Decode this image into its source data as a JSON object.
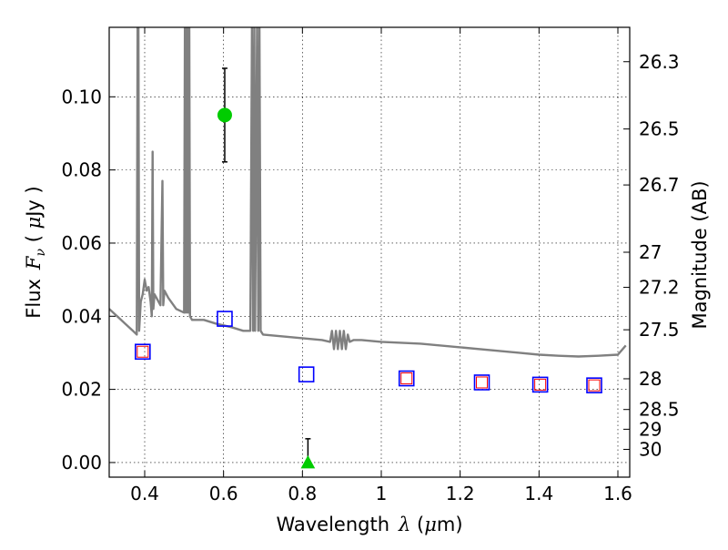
{
  "chart_data": {
    "type": "scatter",
    "xlabel": "Wavelength",
    "ylabel": "Flux",
    "y2label": "Magnitude (AB)",
    "xlim": [
      0.31,
      1.63
    ],
    "ylim": [
      -0.004,
      0.119
    ],
    "grid": true,
    "x_ticks": [
      0.4,
      0.6,
      0.8,
      1.0,
      1.2,
      1.4,
      1.6
    ],
    "x_tick_labels": [
      "0.4",
      "0.6",
      "0.8",
      "1",
      "1.2",
      "1.4",
      "1.6"
    ],
    "y_ticks": [
      0.0,
      0.02,
      0.04,
      0.06,
      0.08,
      0.1
    ],
    "y_tick_labels": [
      "0.00",
      "0.02",
      "0.04",
      "0.06",
      "0.08",
      "0.10"
    ],
    "y2_ticks": [
      {
        "label": "26.3",
        "flux": 0.1096
      },
      {
        "label": "26.5",
        "flux": 0.0912
      },
      {
        "label": "26.7",
        "flux": 0.0759
      },
      {
        "label": "27",
        "flux": 0.0575
      },
      {
        "label": "27.2",
        "flux": 0.0479
      },
      {
        "label": "27.5",
        "flux": 0.0363
      },
      {
        "label": "28",
        "flux": 0.0229
      },
      {
        "label": "28.5",
        "flux": 0.0145
      },
      {
        "label": "29",
        "flux": 0.0091
      },
      {
        "label": "30",
        "flux": 0.0036
      }
    ],
    "series": [
      {
        "style": "line",
        "color": "#808080",
        "x": [
          0.31,
          0.33,
          0.35,
          0.37,
          0.38,
          0.382,
          0.384,
          0.386,
          0.39,
          0.395,
          0.4,
          0.405,
          0.41,
          0.415,
          0.418,
          0.42,
          0.422,
          0.425,
          0.43,
          0.44,
          0.445,
          0.447,
          0.45,
          0.46,
          0.48,
          0.5,
          0.502,
          0.503,
          0.505,
          0.507,
          0.509,
          0.511,
          0.513,
          0.515,
          0.52,
          0.55,
          0.58,
          0.6,
          0.62,
          0.65,
          0.668,
          0.672,
          0.675,
          0.678,
          0.68,
          0.685,
          0.688,
          0.691,
          0.694,
          0.7,
          0.75,
          0.8,
          0.85,
          0.87,
          0.875,
          0.88,
          0.885,
          0.89,
          0.895,
          0.9,
          0.905,
          0.91,
          0.915,
          0.92,
          0.93,
          0.94,
          0.95,
          1.0,
          1.1,
          1.2,
          1.3,
          1.35,
          1.4,
          1.45,
          1.5,
          1.55,
          1.6,
          1.62
        ],
        "y": [
          0.042,
          0.04,
          0.038,
          0.036,
          0.035,
          0.12,
          0.12,
          0.036,
          0.044,
          0.046,
          0.05,
          0.047,
          0.048,
          0.044,
          0.04,
          0.085,
          0.042,
          0.046,
          0.045,
          0.043,
          0.077,
          0.043,
          0.047,
          0.045,
          0.042,
          0.041,
          0.12,
          0.041,
          0.12,
          0.041,
          0.12,
          0.041,
          0.12,
          0.04,
          0.039,
          0.039,
          0.038,
          0.0375,
          0.037,
          0.036,
          0.036,
          0.12,
          0.036,
          0.12,
          0.036,
          0.12,
          0.036,
          0.12,
          0.036,
          0.035,
          0.0345,
          0.034,
          0.0335,
          0.033,
          0.036,
          0.031,
          0.036,
          0.031,
          0.036,
          0.031,
          0.036,
          0.031,
          0.035,
          0.033,
          0.0335,
          0.0335,
          0.0335,
          0.033,
          0.0325,
          0.0315,
          0.0305,
          0.03,
          0.0295,
          0.0292,
          0.029,
          0.0292,
          0.0295,
          0.032
        ]
      },
      {
        "style": "square-markers",
        "color": "#0000ff",
        "x": [
          0.395,
          0.603,
          0.81,
          1.064,
          1.255,
          1.403,
          1.54
        ],
        "y": [
          0.0303,
          0.0393,
          0.0241,
          0.023,
          0.0219,
          0.0213,
          0.0211
        ]
      },
      {
        "style": "square-markers",
        "color": "#ff0000",
        "x": [
          0.395,
          1.064,
          1.255,
          1.403,
          1.54
        ],
        "y": [
          0.0303,
          0.023,
          0.0219,
          0.0213,
          0.0211
        ]
      },
      {
        "style": "circle-errorbar",
        "color": "#00cc00",
        "x": [
          0.603
        ],
        "y": [
          0.095
        ],
        "yerr": [
          0.0128
        ]
      },
      {
        "style": "triangle-errorbar",
        "color": "#00cc00",
        "x": [
          0.814
        ],
        "y": [
          0.0
        ],
        "yerr_upper": [
          0.0065
        ]
      }
    ]
  }
}
